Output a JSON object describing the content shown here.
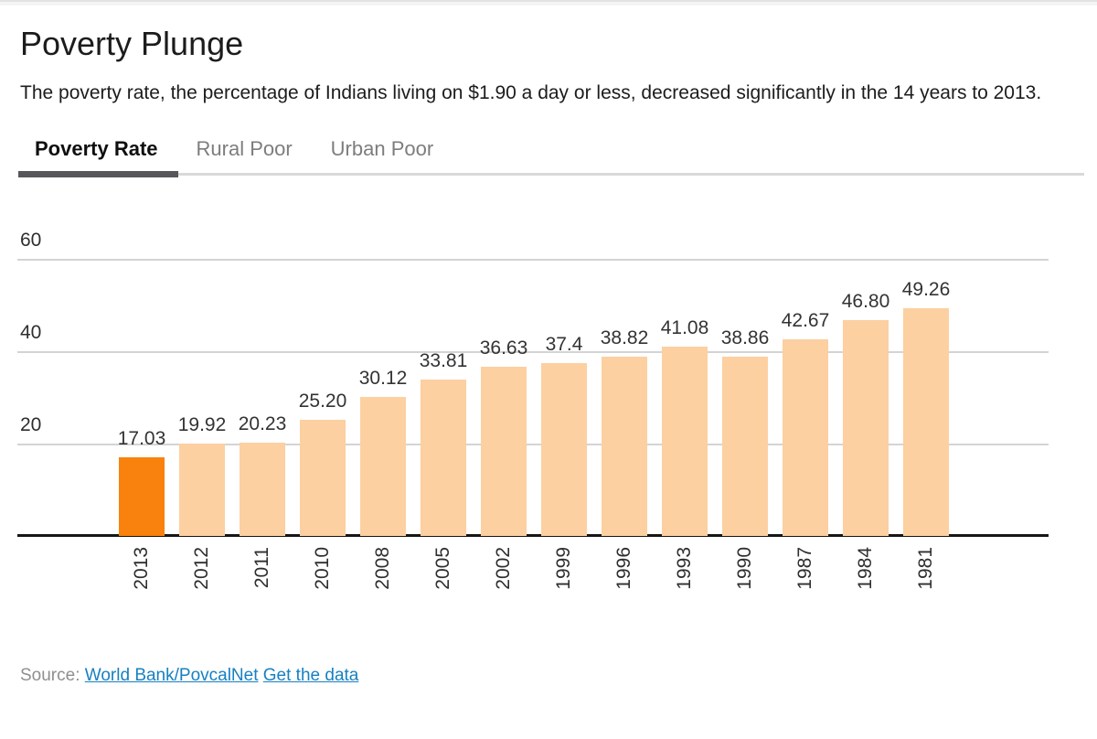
{
  "header": {
    "title": "Poverty Plunge",
    "subtitle": "The poverty rate, the percentage of Indians living on $1.90 a day or less, decreased significantly in the 14 years to 2013."
  },
  "tabs": [
    {
      "label": "Poverty Rate",
      "active": true
    },
    {
      "label": "Rural Poor",
      "active": false
    },
    {
      "label": "Urban Poor",
      "active": false
    }
  ],
  "chart_data": {
    "type": "bar",
    "title": "Poverty Plunge",
    "categories": [
      "2013",
      "2012",
      "2011",
      "2010",
      "2008",
      "2005",
      "2002",
      "1999",
      "1996",
      "1993",
      "1990",
      "1987",
      "1984",
      "1981"
    ],
    "values": [
      17.03,
      19.92,
      20.23,
      25.2,
      30.12,
      33.81,
      36.63,
      37.4,
      38.82,
      41.08,
      38.86,
      42.67,
      46.8,
      49.26
    ],
    "value_labels": [
      "17.03",
      "19.92",
      "20.23",
      "25.20",
      "30.12",
      "33.81",
      "36.63",
      "37.4",
      "38.82",
      "41.08",
      "38.86",
      "42.67",
      "46.80",
      "49.26"
    ],
    "xlabel": "",
    "ylabel": "",
    "yticks": [
      20,
      40,
      60
    ],
    "ylim": [
      0,
      60
    ],
    "grid": true,
    "legend": false,
    "highlight_category": "2013",
    "colors": {
      "bar": "#fcd0a1",
      "highlight": "#f8820d",
      "gridline": "#d4d4d4",
      "axis": "#161616"
    }
  },
  "source": {
    "label": "Source:",
    "links": [
      {
        "text": "World Bank/PovcalNet"
      },
      {
        "text": "Get the data"
      }
    ]
  }
}
